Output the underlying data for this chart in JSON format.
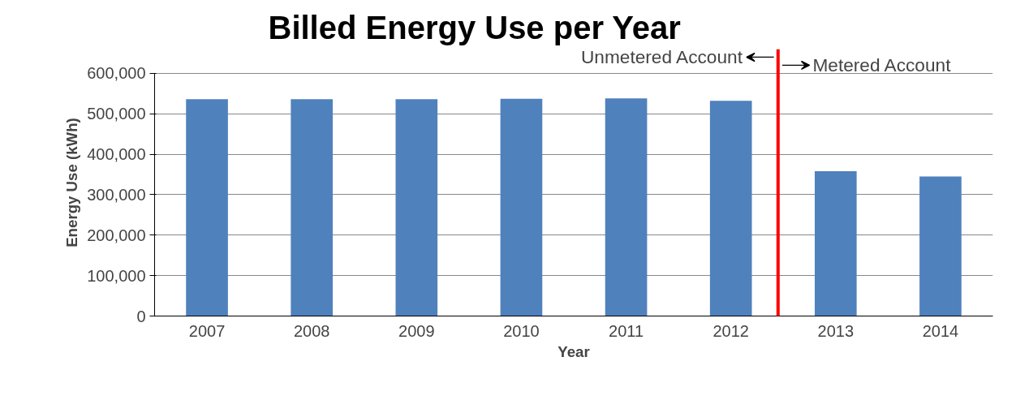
{
  "chart_data": {
    "type": "bar",
    "title": "Billed Energy Use per Year",
    "xlabel": "Year",
    "ylabel": "Energy Use (kWh)",
    "x": [
      2007,
      2008,
      2009,
      2010,
      2011,
      2012,
      2013,
      2014
    ],
    "xlim": [
      2006.5,
      2014.5
    ],
    "xticks": [
      2007,
      2008,
      2009,
      2010,
      2011,
      2012,
      2013,
      2014
    ],
    "values": [
      536000,
      536000,
      536000,
      537000,
      538000,
      532000,
      358000,
      345000
    ],
    "color": "#4f81bd",
    "ylim": [
      0,
      660000
    ],
    "yticks": [
      {
        "value": 0,
        "label": "0"
      },
      {
        "value": 100000,
        "label": "100,000"
      },
      {
        "value": 200000,
        "label": "200,000"
      },
      {
        "value": 300000,
        "label": "300,000"
      },
      {
        "value": 400000,
        "label": "400,000"
      },
      {
        "value": 500000,
        "label": "500,000"
      },
      {
        "value": 600000,
        "label": "600,000"
      }
    ],
    "grid": "y",
    "ref_lines": [
      {
        "axis": "x",
        "value": 2012.45,
        "color": "#ff0000"
      }
    ],
    "annotations": [
      {
        "text": "Unmetered Account",
        "x": 2012.45,
        "y": 640000
      },
      {
        "text": "Metered Account",
        "x": 2012.45,
        "y": 620000
      }
    ]
  }
}
